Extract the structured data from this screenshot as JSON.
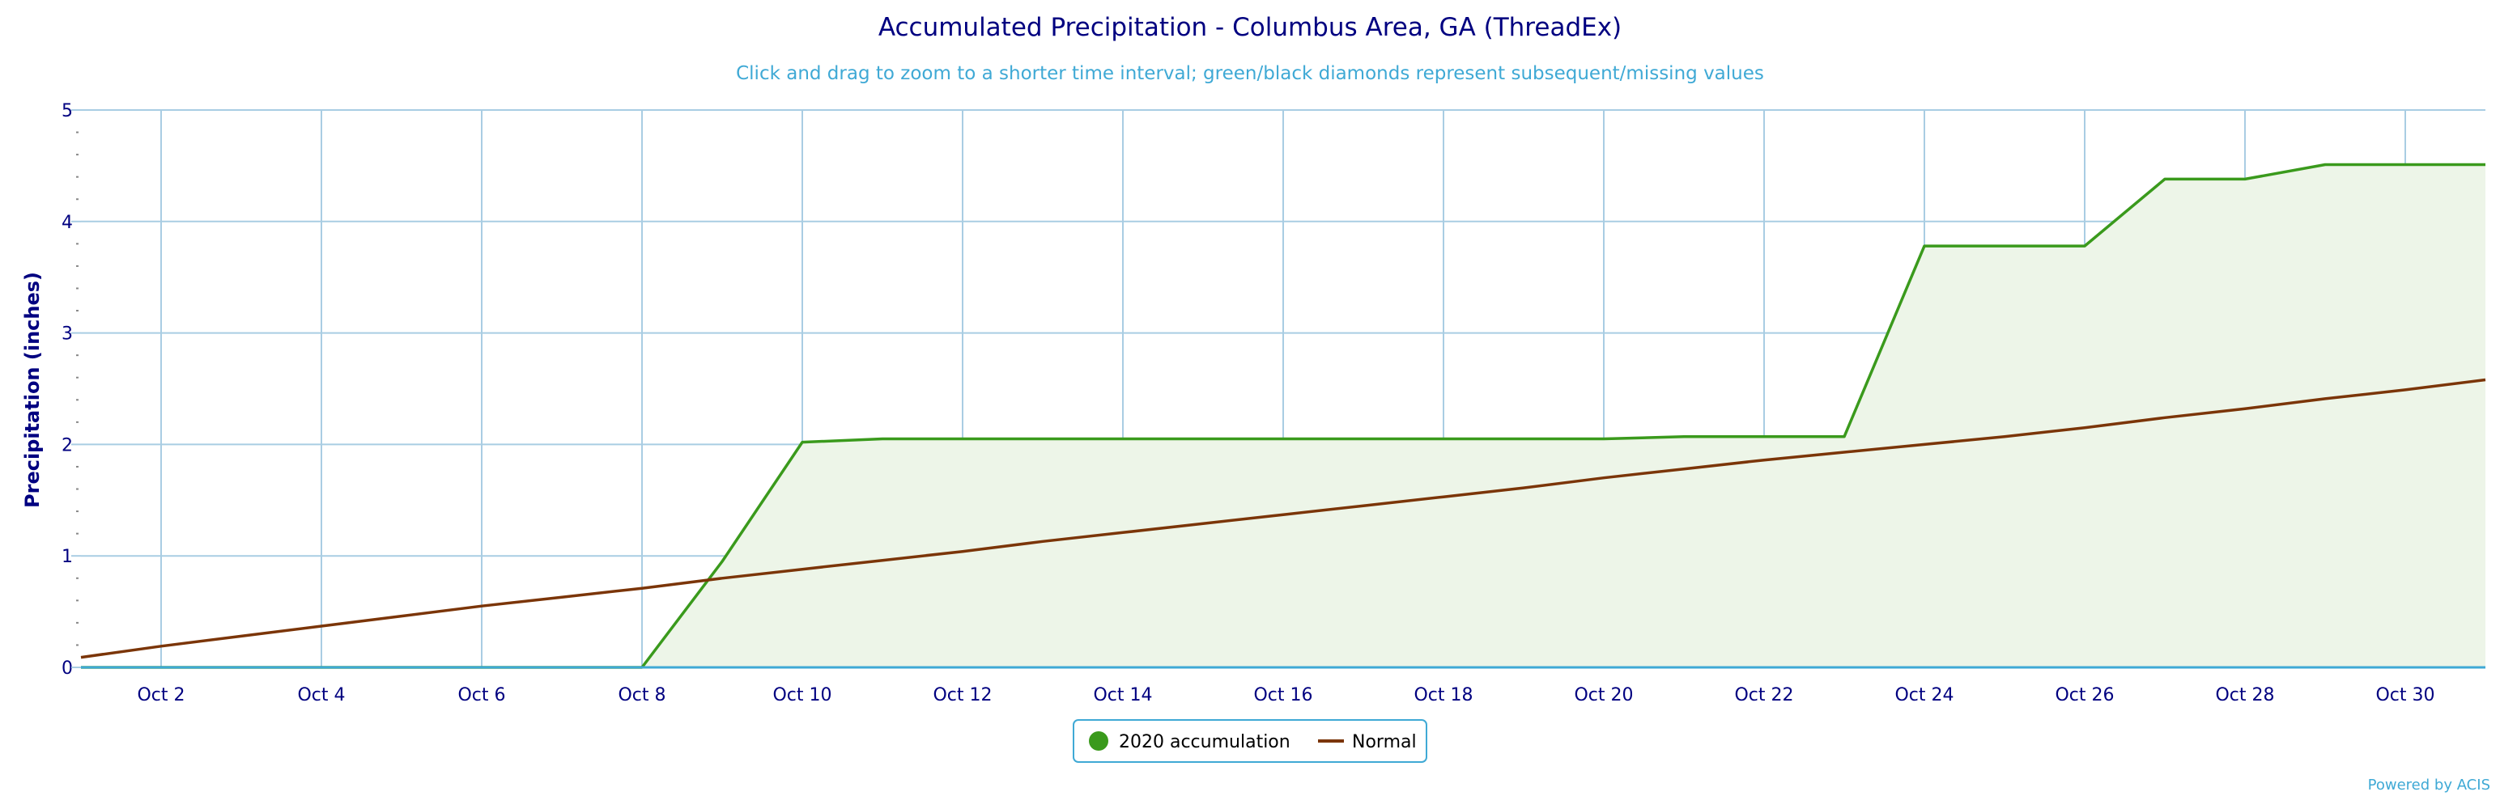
{
  "chart_data": {
    "type": "area",
    "title": "Accumulated Precipitation - Columbus Area, GA (ThreadEx)",
    "subtitle": "Click and drag to zoom to a shorter time interval; green/black diamonds represent subsequent/missing values",
    "ylabel": "Precipitation (inches)",
    "xlabel": "",
    "ylim": [
      0,
      5
    ],
    "xlim": [
      1,
      31
    ],
    "yticks": [
      "0",
      "1",
      "2",
      "3",
      "4",
      "5"
    ],
    "xticks": [
      {
        "day": 2,
        "label": "Oct 2"
      },
      {
        "day": 4,
        "label": "Oct 4"
      },
      {
        "day": 6,
        "label": "Oct 6"
      },
      {
        "day": 8,
        "label": "Oct 8"
      },
      {
        "day": 10,
        "label": "Oct 10"
      },
      {
        "day": 12,
        "label": "Oct 12"
      },
      {
        "day": 14,
        "label": "Oct 14"
      },
      {
        "day": 16,
        "label": "Oct 16"
      },
      {
        "day": 18,
        "label": "Oct 18"
      },
      {
        "day": 20,
        "label": "Oct 20"
      },
      {
        "day": 22,
        "label": "Oct 22"
      },
      {
        "day": 24,
        "label": "Oct 24"
      },
      {
        "day": 26,
        "label": "Oct 26"
      },
      {
        "day": 28,
        "label": "Oct 28"
      },
      {
        "day": 30,
        "label": "Oct 30"
      }
    ],
    "grid": true,
    "legend_position": "bottom-center",
    "series": [
      {
        "name": "2020 accumulation",
        "color": "#3a9a1c",
        "fill": "#edf5e8",
        "x": [
          1,
          2,
          3,
          4,
          5,
          6,
          7,
          8,
          9,
          10,
          11,
          12,
          13,
          14,
          15,
          16,
          17,
          18,
          19,
          20,
          21,
          22,
          23,
          24,
          25,
          26,
          27,
          28,
          29,
          30,
          31
        ],
        "values": [
          0,
          0,
          0,
          0,
          0,
          0,
          0,
          0,
          0.95,
          2.02,
          2.05,
          2.05,
          2.05,
          2.05,
          2.05,
          2.05,
          2.05,
          2.05,
          2.05,
          2.05,
          2.07,
          2.07,
          2.07,
          3.78,
          3.78,
          3.78,
          4.38,
          4.38,
          4.51,
          4.51,
          4.51
        ]
      },
      {
        "name": "Normal",
        "color": "#7b3508",
        "x": [
          1,
          2,
          3,
          4,
          5,
          6,
          7,
          8,
          9,
          10,
          11,
          12,
          13,
          14,
          15,
          16,
          17,
          18,
          19,
          20,
          21,
          22,
          23,
          24,
          25,
          26,
          27,
          28,
          29,
          30,
          31
        ],
        "values": [
          0.09,
          0.19,
          0.28,
          0.37,
          0.46,
          0.55,
          0.63,
          0.71,
          0.8,
          0.88,
          0.96,
          1.04,
          1.13,
          1.21,
          1.29,
          1.37,
          1.45,
          1.53,
          1.61,
          1.7,
          1.78,
          1.86,
          1.93,
          2.0,
          2.07,
          2.15,
          2.24,
          2.32,
          2.41,
          2.49,
          2.58
        ]
      }
    ]
  },
  "credit": "Powered by ACIS"
}
